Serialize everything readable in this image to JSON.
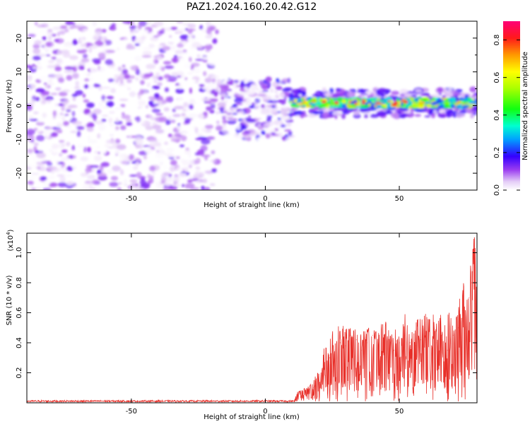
{
  "title": "PAZ1.2024.160.20.42.G12",
  "chart_data": [
    {
      "type": "heatmap",
      "xlabel": "Height of straight line (km)",
      "ylabel": "Frequency (Hz)",
      "xlim": [
        -89,
        79
      ],
      "ylim": [
        -25,
        25
      ],
      "xticks": [
        -50,
        0,
        50
      ],
      "xtick_labels": [
        "-50",
        "0",
        "50"
      ],
      "yticks": [
        -20,
        -10,
        0,
        10,
        20
      ],
      "ytick_labels": [
        "-20",
        "-10",
        "0",
        "10",
        "20"
      ],
      "colorbar": {
        "label": "Normalized spectral amplitude",
        "range": [
          0.0,
          0.9
        ],
        "ticks": [
          0.0,
          0.2,
          0.4,
          0.6,
          0.8
        ],
        "tick_labels": [
          "0.0",
          "0.2",
          "0.4",
          "0.6",
          "0.8"
        ],
        "colormap": "rainbow: white-violet-purple-blue-cyan-green-yellow-orange-red-magenta"
      },
      "description_regions": [
        {
          "x_range": [
            -89,
            -18
          ],
          "freq_range": [
            -25,
            25
          ],
          "amplitude": [
            0.0,
            0.15
          ],
          "pattern": "scattered noise"
        },
        {
          "x_range": [
            -18,
            10
          ],
          "freq_range": [
            -10,
            8
          ],
          "amplitude": [
            0.0,
            0.2
          ],
          "pattern": "transition noise"
        },
        {
          "x_range": [
            10,
            79
          ],
          "freq_range": [
            -2,
            2
          ],
          "amplitude": [
            0.2,
            0.9
          ],
          "pattern": "signal band near 0-1 Hz"
        }
      ]
    },
    {
      "type": "line",
      "xlabel": "Height of straight line (km)",
      "ylabel": "SNR (10 * v/v)",
      "y_scale_label": "(x10",
      "y_scale_exponent": "4",
      "y_scale_suffix": ")",
      "xlim": [
        -89,
        79
      ],
      "ylim": [
        0,
        1.13
      ],
      "xticks": [
        -50,
        0,
        50
      ],
      "xtick_labels": [
        "-50",
        "0",
        "50"
      ],
      "yticks": [
        0.2,
        0.4,
        0.6,
        0.8,
        1.0
      ],
      "ytick_labels": [
        "0.2",
        "0.4",
        "0.6",
        "0.8",
        "1.0"
      ],
      "series": [
        {
          "color": "#e8302a",
          "x": [
            -89,
            -60,
            -30,
            0,
            11,
            12,
            15,
            18,
            20,
            22,
            24,
            26,
            28,
            30,
            32,
            34,
            36,
            38,
            40,
            42,
            44,
            46,
            48,
            50,
            52,
            54,
            56,
            58,
            60,
            62,
            64,
            66,
            68,
            70,
            72,
            74,
            76,
            77,
            78,
            79
          ],
          "y": [
            0.01,
            0.01,
            0.01,
            0.01,
            0.02,
            0.06,
            0.08,
            0.1,
            0.15,
            0.25,
            0.3,
            0.35,
            0.4,
            0.38,
            0.4,
            0.42,
            0.35,
            0.4,
            0.45,
            0.38,
            0.4,
            0.42,
            0.35,
            0.4,
            0.45,
            0.4,
            0.38,
            0.42,
            0.45,
            0.38,
            0.4,
            0.42,
            0.35,
            0.45,
            0.5,
            0.6,
            0.7,
            0.8,
            1.1,
            0.55
          ],
          "envelope_max": [
            0.02,
            0.02,
            0.02,
            0.02,
            0.03,
            0.08,
            0.1,
            0.15,
            0.25,
            0.4,
            0.45,
            0.5,
            0.53,
            0.5,
            0.52,
            0.5,
            0.52,
            0.52,
            0.5,
            0.52,
            0.58,
            0.52,
            0.52,
            0.55,
            0.6,
            0.58,
            0.6,
            0.58,
            0.62,
            0.6,
            0.58,
            0.62,
            0.63,
            0.65,
            0.7,
            0.85,
            0.93,
            0.95,
            1.13,
            0.8
          ]
        }
      ]
    }
  ]
}
